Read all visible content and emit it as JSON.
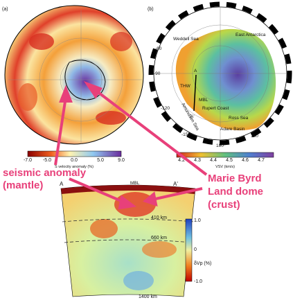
{
  "panel_a": {
    "label": "(a)",
    "colorbar": {
      "ticks": [
        "-7.0",
        "-5.0",
        "0.0",
        "5.0",
        "9.0"
      ],
      "title": "S velocity anomaly (%)"
    }
  },
  "panel_b": {
    "label": "(b)",
    "places": [
      "Weddell Sea",
      "East Antarctica",
      "A",
      "THW",
      "MBL",
      "Amundsen Sea",
      "Rupert Coast",
      "A'",
      "Ross Sea",
      "Adare Basin"
    ],
    "longitudes": [
      "-60",
      "-90",
      "-120",
      "-150",
      "180°",
      "150"
    ],
    "colorbar": {
      "ticks": [
        "4.2",
        "4.3",
        "4.4",
        "4.5",
        "4.6",
        "4.7"
      ],
      "title": "VSV (km/s)"
    }
  },
  "annotations": {
    "left": [
      "seismic anomaly",
      "(mantle)"
    ],
    "right": [
      "Marie Byrd",
      "Land dome",
      "(crust)"
    ]
  },
  "cross_section": {
    "start": "A",
    "middle": "MBL",
    "end": "A'",
    "depths": [
      "410 km",
      "660 km",
      "1400 km"
    ],
    "colorbar": {
      "ticks": [
        "1.0",
        "0",
        "-1.0"
      ],
      "title": "δVp (%)"
    }
  }
}
